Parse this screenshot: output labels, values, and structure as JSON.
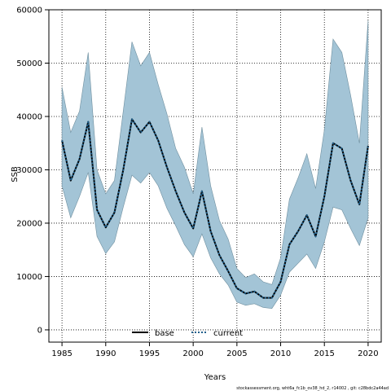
{
  "chart_data": {
    "type": "area",
    "title": "",
    "xlabel": "Years",
    "ylabel": "SSB",
    "xlim": [
      1983.5,
      2021.5
    ],
    "ylim": [
      -2300,
      60000
    ],
    "xticks": [
      1985,
      1990,
      1995,
      2000,
      2005,
      2010,
      2015,
      2020
    ],
    "yticks": [
      0,
      10000,
      20000,
      30000,
      40000,
      50000,
      60000
    ],
    "grid": true,
    "legend_position": "bottom",
    "x": [
      1985,
      1986,
      1987,
      1988,
      1989,
      1990,
      1991,
      1992,
      1993,
      1994,
      1995,
      1996,
      1997,
      1998,
      1999,
      2000,
      2001,
      2002,
      2003,
      2004,
      2005,
      2006,
      2007,
      2008,
      2009,
      2010,
      2011,
      2012,
      2013,
      2014,
      2015,
      2016,
      2017,
      2018,
      2019,
      2020
    ],
    "series": [
      {
        "name": "base",
        "color": "#000000",
        "style": "solid",
        "values": [
          35500,
          28000,
          32000,
          39000,
          22500,
          19200,
          22000,
          30000,
          39500,
          37000,
          39000,
          35500,
          30500,
          26000,
          22000,
          19000,
          26000,
          18500,
          14000,
          11000,
          7800,
          6800,
          7200,
          6000,
          6000,
          9000,
          16000,
          18500,
          21500,
          17500,
          25000,
          35000,
          34000,
          28000,
          23500,
          34500
        ]
      },
      {
        "name": "current",
        "color": "#1f5f8b",
        "style": "dotted",
        "values": [
          35500,
          28000,
          32000,
          39000,
          22500,
          19200,
          22000,
          30000,
          39500,
          37000,
          39000,
          35500,
          30500,
          26000,
          22000,
          19000,
          26000,
          18500,
          14000,
          11000,
          7800,
          6800,
          7200,
          6000,
          6000,
          9000,
          16000,
          18500,
          21500,
          17500,
          25000,
          35000,
          34000,
          28000,
          23500,
          34500
        ]
      }
    ],
    "band": {
      "color": "#a3c4d6",
      "upper": [
        45500,
        37000,
        41000,
        52000,
        30000,
        25500,
        28000,
        41000,
        54000,
        49500,
        52000,
        46000,
        40500,
        34000,
        30500,
        25500,
        38000,
        27000,
        20500,
        17000,
        11500,
        9800,
        10500,
        9000,
        8500,
        13500,
        24500,
        28500,
        33000,
        26500,
        37500,
        54500,
        52000,
        44000,
        35000,
        58000
      ],
      "lower": [
        27000,
        21000,
        25000,
        29500,
        17500,
        14300,
        16500,
        23000,
        29000,
        27500,
        29500,
        27000,
        22800,
        19500,
        16000,
        13700,
        18000,
        13500,
        10500,
        8400,
        5200,
        4600,
        4900,
        4200,
        4000,
        6500,
        10800,
        12500,
        14200,
        11500,
        16500,
        23000,
        22500,
        19000,
        15800,
        21000
      ]
    }
  },
  "footer_text": "stockassessment.org, wht6a_fc1b_ov38_hd_2, r14002 , git: c28bdc2a44ad"
}
